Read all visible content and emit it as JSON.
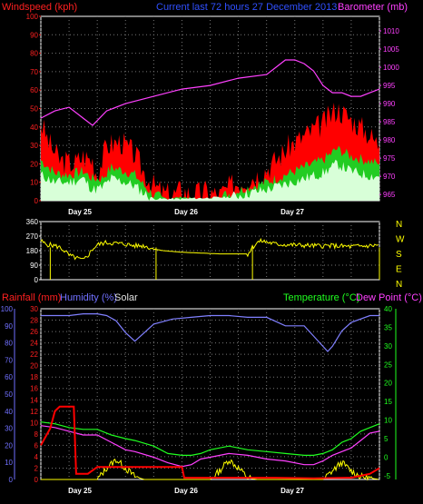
{
  "chart_data": [
    {
      "type": "line",
      "panel": "wind-barometer",
      "labels": {
        "windspeed": "Windspeed (kph)",
        "current": "Current last 72 hours 27 December 2013",
        "barometer": "Barometer (mb)"
      },
      "left_axis": {
        "ticks": [
          0,
          10,
          20,
          30,
          40,
          50,
          60,
          70,
          80,
          90,
          100
        ],
        "range": [
          0,
          100
        ]
      },
      "right_axis": {
        "ticks": [
          965,
          970,
          975,
          980,
          985,
          990,
          995,
          1000,
          1005,
          1010
        ],
        "range": [
          963.3,
          1014
        ]
      },
      "day_labels": [
        "Day 25",
        "Day 26",
        "Day 27"
      ],
      "x_range_hours": [
        0,
        72
      ],
      "barometer_mb": [
        [
          0,
          986
        ],
        [
          3,
          988
        ],
        [
          6,
          989
        ],
        [
          9,
          986
        ],
        [
          11,
          984
        ],
        [
          14,
          988
        ],
        [
          18,
          990
        ],
        [
          24,
          992
        ],
        [
          30,
          994
        ],
        [
          36,
          995
        ],
        [
          42,
          997
        ],
        [
          48,
          998
        ],
        [
          50,
          1000
        ],
        [
          52,
          1002
        ],
        [
          54,
          1002
        ],
        [
          56,
          1001
        ],
        [
          58,
          999
        ],
        [
          60,
          995
        ],
        [
          62,
          993
        ],
        [
          64,
          993
        ],
        [
          66,
          992
        ],
        [
          68,
          992
        ],
        [
          70,
          993
        ],
        [
          72,
          994
        ]
      ],
      "gust_kph": [
        [
          0,
          42
        ],
        [
          2,
          30
        ],
        [
          4,
          22
        ],
        [
          7,
          20
        ],
        [
          9,
          24
        ],
        [
          11,
          22
        ],
        [
          12,
          14
        ],
        [
          14,
          30
        ],
        [
          17,
          32
        ],
        [
          20,
          25
        ],
        [
          22,
          15
        ],
        [
          24,
          8
        ],
        [
          26,
          4
        ],
        [
          28,
          3
        ],
        [
          30,
          6
        ],
        [
          32,
          3
        ],
        [
          35,
          5
        ],
        [
          38,
          3
        ],
        [
          41,
          9
        ],
        [
          44,
          12
        ],
        [
          47,
          15
        ],
        [
          50,
          22
        ],
        [
          53,
          30
        ],
        [
          56,
          35
        ],
        [
          60,
          42
        ],
        [
          63,
          50
        ],
        [
          66,
          44
        ],
        [
          69,
          38
        ],
        [
          72,
          30
        ]
      ],
      "avg_kph": [
        [
          0,
          22
        ],
        [
          3,
          15
        ],
        [
          6,
          14
        ],
        [
          9,
          16
        ],
        [
          11,
          12
        ],
        [
          13,
          12
        ],
        [
          15,
          18
        ],
        [
          18,
          16
        ],
        [
          20,
          14
        ],
        [
          22,
          8
        ],
        [
          24,
          3
        ],
        [
          27,
          1
        ],
        [
          30,
          2
        ],
        [
          33,
          1
        ],
        [
          37,
          1
        ],
        [
          40,
          4
        ],
        [
          44,
          7
        ],
        [
          48,
          10
        ],
        [
          52,
          14
        ],
        [
          56,
          18
        ],
        [
          60,
          22
        ],
        [
          63,
          28
        ],
        [
          66,
          24
        ],
        [
          69,
          22
        ],
        [
          72,
          20
        ]
      ],
      "windspeed_kph": [
        [
          0,
          14
        ],
        [
          3,
          10
        ],
        [
          6,
          10
        ],
        [
          9,
          12
        ],
        [
          11,
          6
        ],
        [
          13,
          7
        ],
        [
          15,
          12
        ],
        [
          18,
          10
        ],
        [
          20,
          8
        ],
        [
          22,
          4
        ],
        [
          24,
          1
        ],
        [
          30,
          1
        ],
        [
          40,
          2
        ],
        [
          44,
          4
        ],
        [
          48,
          6
        ],
        [
          52,
          9
        ],
        [
          56,
          12
        ],
        [
          60,
          15
        ],
        [
          63,
          20
        ],
        [
          66,
          16
        ],
        [
          69,
          14
        ],
        [
          72,
          13
        ]
      ]
    },
    {
      "type": "line",
      "panel": "wind-direction",
      "left_axis": {
        "ticks": [
          0,
          90,
          180,
          270,
          360
        ],
        "range": [
          0,
          360
        ]
      },
      "compass": [
        "N",
        "W",
        "S",
        "E",
        "N"
      ],
      "direction_deg": [
        [
          0,
          240
        ],
        [
          1,
          220
        ],
        [
          2,
          215
        ],
        [
          3,
          210
        ],
        [
          4,
          200
        ],
        [
          5,
          180
        ],
        [
          6,
          150
        ],
        [
          7,
          140
        ],
        [
          8,
          130
        ],
        [
          9,
          120
        ],
        [
          10,
          150
        ],
        [
          11,
          190
        ],
        [
          12,
          215
        ],
        [
          13,
          225
        ],
        [
          14,
          230
        ],
        [
          16,
          225
        ],
        [
          18,
          220
        ],
        [
          20,
          210
        ],
        [
          22,
          210
        ],
        [
          24,
          190
        ],
        [
          26,
          180
        ],
        [
          28,
          175
        ],
        [
          30,
          170
        ],
        [
          34,
          165
        ],
        [
          38,
          160
        ],
        [
          42,
          160
        ],
        [
          44,
          160
        ],
        [
          45,
          200
        ],
        [
          46,
          230
        ],
        [
          47,
          240
        ],
        [
          50,
          220
        ],
        [
          54,
          215
        ],
        [
          58,
          210
        ],
        [
          62,
          210
        ],
        [
          66,
          205
        ],
        [
          70,
          210
        ],
        [
          72,
          215
        ]
      ]
    },
    {
      "type": "line",
      "panel": "rain-humidity-temperature",
      "labels": {
        "rainfall": "Rainfall (mm)",
        "humidity": "Humidity (%)",
        "solar": "Solar",
        "temperature": "Temperature (°C)",
        "dewpoint": "Dew Point (°C)"
      },
      "humidity_axis": {
        "ticks": [
          0,
          10,
          20,
          30,
          40,
          50,
          60,
          70,
          80,
          90,
          100
        ],
        "range": [
          0,
          100
        ]
      },
      "rain_axis": {
        "ticks": [
          0,
          2,
          4,
          6,
          8,
          10,
          12,
          14,
          16,
          18,
          20,
          22,
          24,
          26,
          28,
          30
        ],
        "range": [
          0,
          30
        ]
      },
      "temp_axis": {
        "ticks": [
          -5,
          0,
          5,
          10,
          15,
          20,
          25,
          30,
          35,
          40
        ],
        "range": [
          -6,
          40
        ]
      },
      "day_labels": [
        "Day 25",
        "Day 26",
        "Day 27"
      ],
      "x_range_hours": [
        0,
        72
      ],
      "humidity_pct": [
        [
          0,
          96
        ],
        [
          3,
          96
        ],
        [
          6,
          96
        ],
        [
          9,
          97
        ],
        [
          12,
          97
        ],
        [
          14,
          96
        ],
        [
          16,
          93
        ],
        [
          18,
          86
        ],
        [
          20,
          81
        ],
        [
          22,
          86
        ],
        [
          24,
          91
        ],
        [
          28,
          94
        ],
        [
          32,
          95
        ],
        [
          36,
          96
        ],
        [
          40,
          96
        ],
        [
          44,
          95
        ],
        [
          48,
          95
        ],
        [
          52,
          90
        ],
        [
          56,
          90
        ],
        [
          58,
          84
        ],
        [
          60,
          78
        ],
        [
          61,
          75
        ],
        [
          62,
          78
        ],
        [
          64,
          87
        ],
        [
          66,
          92
        ],
        [
          70,
          96
        ],
        [
          72,
          96
        ]
      ],
      "rain_mm": [
        [
          0,
          6
        ],
        [
          2,
          9
        ],
        [
          3,
          12
        ],
        [
          4,
          12.8
        ],
        [
          6,
          12.8
        ],
        [
          7,
          12.8
        ],
        [
          7.5,
          1
        ],
        [
          10,
          1
        ],
        [
          12,
          2.2
        ],
        [
          20,
          2.2
        ],
        [
          26,
          2.2
        ],
        [
          30,
          2.2
        ],
        [
          30.5,
          0.3
        ],
        [
          50,
          0.3
        ],
        [
          58,
          0.2
        ],
        [
          66,
          0.3
        ],
        [
          70,
          1
        ],
        [
          72,
          2
        ]
      ],
      "temperature_c": [
        [
          0,
          9.5
        ],
        [
          3,
          9
        ],
        [
          6,
          8
        ],
        [
          9,
          7.5
        ],
        [
          12,
          7.5
        ],
        [
          15,
          6
        ],
        [
          18,
          5
        ],
        [
          20,
          4.5
        ],
        [
          24,
          3
        ],
        [
          27,
          1
        ],
        [
          30,
          0.5
        ],
        [
          32,
          0.5
        ],
        [
          34,
          1
        ],
        [
          36,
          2
        ],
        [
          40,
          3
        ],
        [
          44,
          2
        ],
        [
          48,
          1.5
        ],
        [
          52,
          1
        ],
        [
          56,
          0.5
        ],
        [
          58,
          0.5
        ],
        [
          60,
          1
        ],
        [
          62,
          2
        ],
        [
          64,
          4
        ],
        [
          66,
          5
        ],
        [
          68,
          7
        ],
        [
          70,
          8
        ],
        [
          72,
          9
        ]
      ],
      "dewpoint_c": [
        [
          0,
          8.5
        ],
        [
          3,
          8
        ],
        [
          6,
          7
        ],
        [
          9,
          6
        ],
        [
          12,
          6
        ],
        [
          15,
          4
        ],
        [
          18,
          2
        ],
        [
          20,
          1.5
        ],
        [
          24,
          0
        ],
        [
          27,
          -1.5
        ],
        [
          30,
          -2.5
        ],
        [
          32,
          -2
        ],
        [
          34,
          -0.5
        ],
        [
          36,
          0
        ],
        [
          40,
          1
        ],
        [
          44,
          0.5
        ],
        [
          48,
          -0.5
        ],
        [
          52,
          -1
        ],
        [
          56,
          -2
        ],
        [
          58,
          -2
        ],
        [
          60,
          -1
        ],
        [
          62,
          0.5
        ],
        [
          64,
          1.5
        ],
        [
          66,
          2.5
        ],
        [
          68,
          4.5
        ],
        [
          70,
          6.5
        ],
        [
          72,
          7
        ]
      ],
      "solar_mm_scale": [
        [
          0,
          0
        ],
        [
          12,
          0
        ],
        [
          14,
          2
        ],
        [
          16,
          3.5
        ],
        [
          18,
          2
        ],
        [
          20,
          0.5
        ],
        [
          22,
          0
        ],
        [
          36,
          0
        ],
        [
          38,
          1.5
        ],
        [
          40,
          3.5
        ],
        [
          42,
          2
        ],
        [
          44,
          0.3
        ],
        [
          46,
          0
        ],
        [
          60,
          0
        ],
        [
          62,
          1.5
        ],
        [
          64,
          3
        ],
        [
          66,
          1.5
        ],
        [
          68,
          0.5
        ],
        [
          72,
          0
        ]
      ]
    }
  ]
}
